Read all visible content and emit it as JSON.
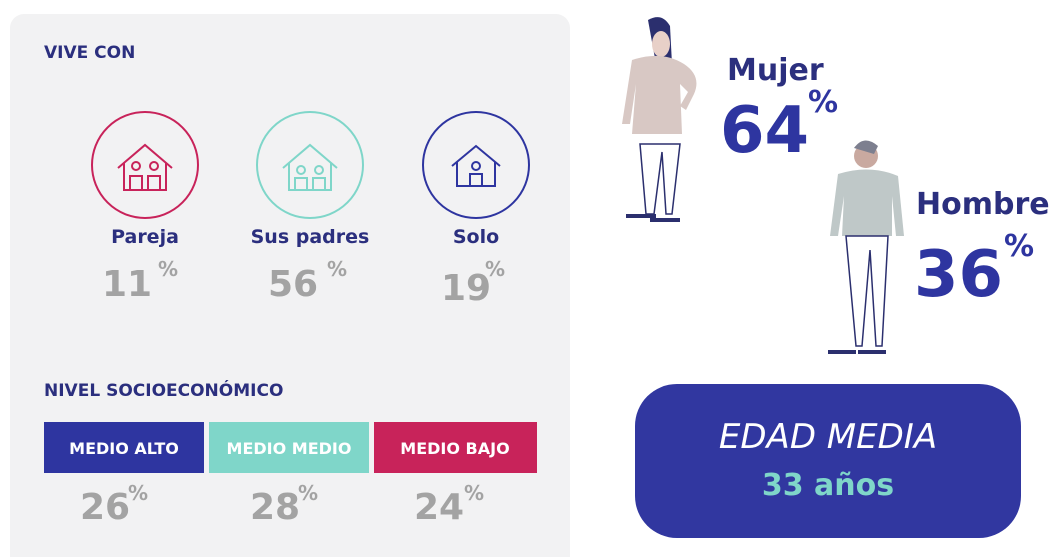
{
  "percent_symbol": "%",
  "vive_con": {
    "title": "VIVE CON",
    "items": [
      {
        "label": "Pareja",
        "value": "11"
      },
      {
        "label": "Sus padres",
        "value": "56"
      },
      {
        "label": "Solo",
        "value": "19"
      }
    ]
  },
  "nivel_socioeconomico": {
    "title": "NIVEL SOCIOECONÓMICO",
    "items": [
      {
        "label": "MEDIO ALTO",
        "value": "26"
      },
      {
        "label": "MEDIO MEDIO",
        "value": "28"
      },
      {
        "label": "MEDIO BAJO",
        "value": "24"
      }
    ]
  },
  "genero": [
    {
      "label": "Mujer",
      "value": "64"
    },
    {
      "label": "Hombre",
      "value": "36"
    }
  ],
  "edad_media": {
    "title": "EDAD MEDIA",
    "value": "33 años"
  }
}
